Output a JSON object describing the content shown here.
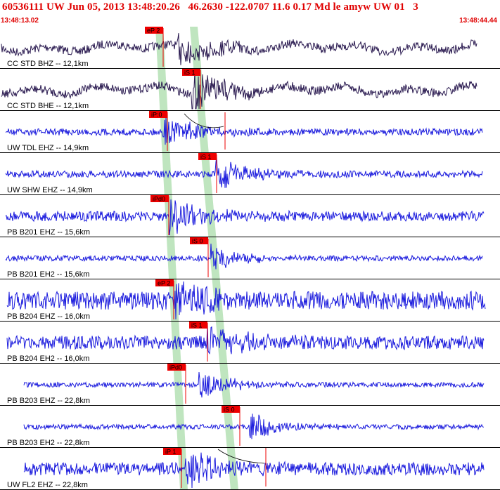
{
  "header": {
    "title": "60536111 UW Jun 05, 2013 13:48:20.26   46.2630 -122.0707 11.6 0.17 Md le amyw UW 01   3",
    "start_time": "13:48:13.02",
    "end_time": "13:48:44.44"
  },
  "colors": {
    "header_text": "#e00000",
    "trace_short_period": "#1a1add",
    "trace_broadband": "#2a1a50",
    "pick_flag": "#ee0000",
    "window_band": "#bfe5bf",
    "gridline": "#000000",
    "background": "#ffffff"
  },
  "traces": [
    {
      "label": "CC STD BHZ -- 12,1km",
      "pick": "eP 2",
      "type": "broadband",
      "noise": 0.35,
      "wave": 1,
      "arrival": 0.37,
      "amp": 1.2
    },
    {
      "label": "CC STD BHE -- 12,1km",
      "pick": "iS 1",
      "type": "broadband",
      "noise": 0.35,
      "wave": 1,
      "arrival": 0.4,
      "amp": 1.5
    },
    {
      "label": "UW TDL EHZ -- 14,9km",
      "pick": "iP:0",
      "type": "sp",
      "noise": 0.2,
      "wave": 0,
      "arrival": 0.33,
      "amp": 1.2
    },
    {
      "label": "UW SHW EHZ -- 14,9km",
      "pick": "iS 1",
      "type": "sp",
      "noise": 0.2,
      "wave": 0,
      "arrival": 0.44,
      "amp": 1.2
    },
    {
      "label": "PB B201 EHZ -- 15,6km",
      "pick": "iPd0",
      "type": "sp",
      "noise": 0.45,
      "wave": 0,
      "arrival": 0.34,
      "amp": 1.3
    },
    {
      "label": "PB B201 EH2 -- 15,6km",
      "pick": "iS 0",
      "type": "sp",
      "noise": 0.1,
      "wave": 0,
      "arrival": 0.43,
      "amp": 0.9
    },
    {
      "label": "PB B204 EHZ -- 16,0km",
      "pick": "eP 2",
      "type": "sp",
      "noise": 1.1,
      "wave": 0,
      "arrival": 0.35,
      "amp": 1.4
    },
    {
      "label": "PB B204 EH2 -- 16,0km",
      "pick": "iS 1",
      "type": "sp",
      "noise": 0.75,
      "wave": 0,
      "arrival": 0.42,
      "amp": 1.3
    },
    {
      "label": "PB B203 EHZ -- 22,8km",
      "pick": "iPd0",
      "type": "sp",
      "noise": 0.05,
      "wave": 0,
      "arrival": 0.38,
      "amp": 0.9
    },
    {
      "label": "PB B203 EH2 -- 22,8km",
      "pick": "iS 0",
      "type": "sp",
      "noise": 0.05,
      "wave": 0,
      "arrival": 0.49,
      "amp": 0.9
    },
    {
      "label": "UW FL2 EHZ -- 22,8km",
      "pick": "iP 1",
      "type": "sp",
      "noise": 0.7,
      "wave": 0,
      "arrival": 0.35,
      "amp": 1.3
    }
  ]
}
